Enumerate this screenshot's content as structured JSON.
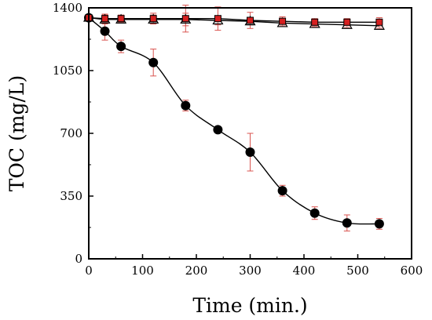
{
  "chart_data": {
    "type": "scatter",
    "xlabel": "Time (min.)",
    "ylabel": "TOC (mg/L)",
    "xlim": [
      0,
      600
    ],
    "ylim": [
      0,
      1400
    ],
    "xticks": [
      0,
      100,
      200,
      300,
      400,
      500,
      600
    ],
    "yticks": [
      0,
      350,
      700,
      1050,
      1400
    ],
    "grid": false,
    "legend": "none",
    "series": [
      {
        "marker": "filled-circle",
        "color": "#000000",
        "smooth_line": true,
        "x": [
          0,
          30,
          60,
          120,
          180,
          240,
          300,
          360,
          420,
          480,
          540
        ],
        "y": [
          1345,
          1270,
          1185,
          1095,
          855,
          720,
          595,
          380,
          255,
          200,
          195
        ],
        "error": [
          0,
          50,
          35,
          75,
          30,
          0,
          105,
          30,
          35,
          45,
          30
        ]
      },
      {
        "marker": "open-triangle",
        "color": "#000000",
        "x": [
          0,
          30,
          60,
          120,
          180,
          240,
          300,
          360,
          420,
          480,
          540
        ],
        "y": [
          1345,
          1335,
          1335,
          1335,
          1335,
          1330,
          1325,
          1315,
          1310,
          1305,
          1300
        ],
        "error": [
          0,
          25,
          15,
          25,
          35,
          25,
          20,
          20,
          15,
          15,
          15
        ]
      },
      {
        "marker": "filled-square",
        "color": "#d62020",
        "x": [
          0,
          30,
          60,
          120,
          180,
          240,
          300,
          360,
          420,
          480,
          540
        ],
        "y": [
          1345,
          1340,
          1340,
          1340,
          1340,
          1340,
          1330,
          1325,
          1320,
          1320,
          1320
        ],
        "error": [
          0,
          25,
          20,
          30,
          75,
          65,
          45,
          25,
          20,
          20,
          25
        ]
      }
    ],
    "errorbar_color": "#d9534f"
  }
}
